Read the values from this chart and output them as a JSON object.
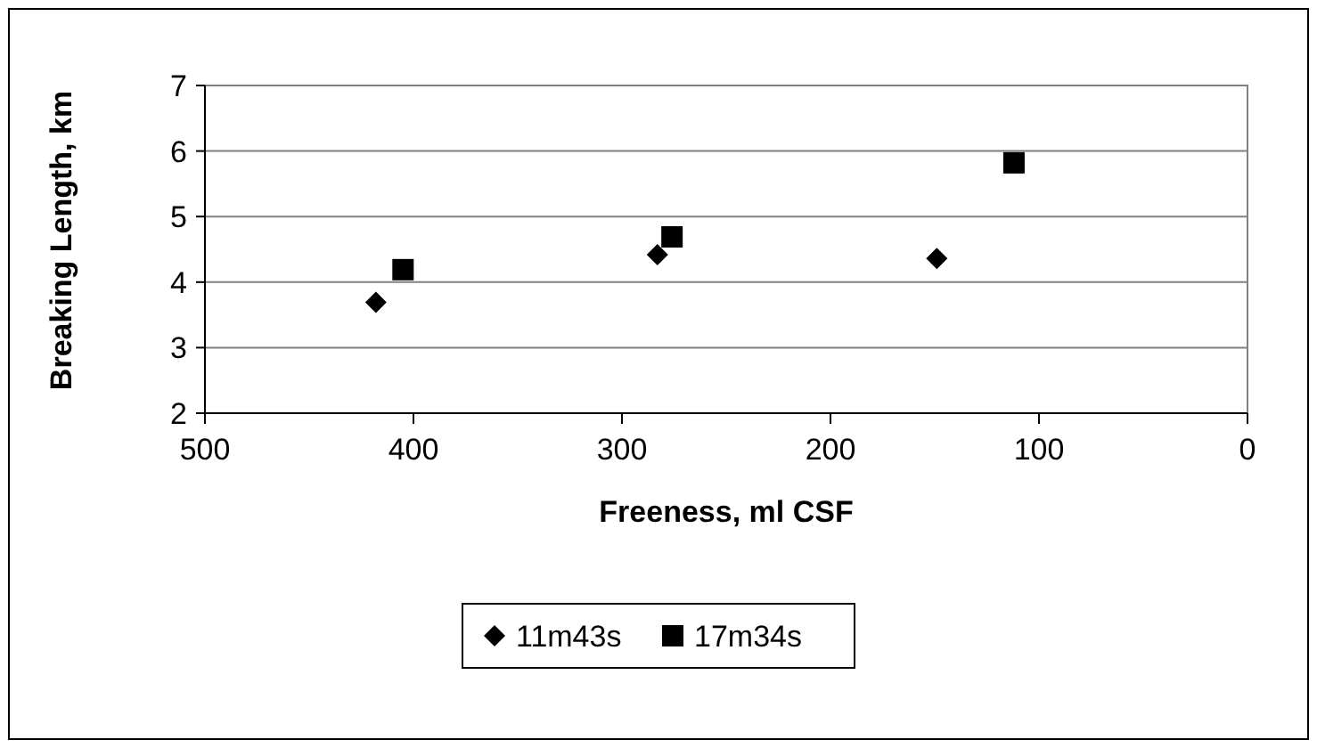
{
  "chart_data": {
    "type": "scatter",
    "xlabel": "Freeness, ml CSF",
    "ylabel": "Breaking Length, km",
    "xlim": [
      500,
      0
    ],
    "xticks": [
      500,
      400,
      300,
      200,
      100,
      0
    ],
    "ylim": [
      2,
      7
    ],
    "yticks": [
      2,
      3,
      4,
      5,
      6,
      7
    ],
    "grid": "y",
    "legend": "bottom",
    "series": [
      {
        "name": "11m43s",
        "color": "#000000",
        "marker": "diamond",
        "x": [
          418,
          283,
          149
        ],
        "values": [
          3.69,
          4.42,
          4.36
        ]
      },
      {
        "name": "17m34s",
        "color": "#000000",
        "marker": "square",
        "x": [
          405,
          276,
          112
        ],
        "values": [
          4.19,
          4.69,
          5.82
        ]
      }
    ]
  }
}
